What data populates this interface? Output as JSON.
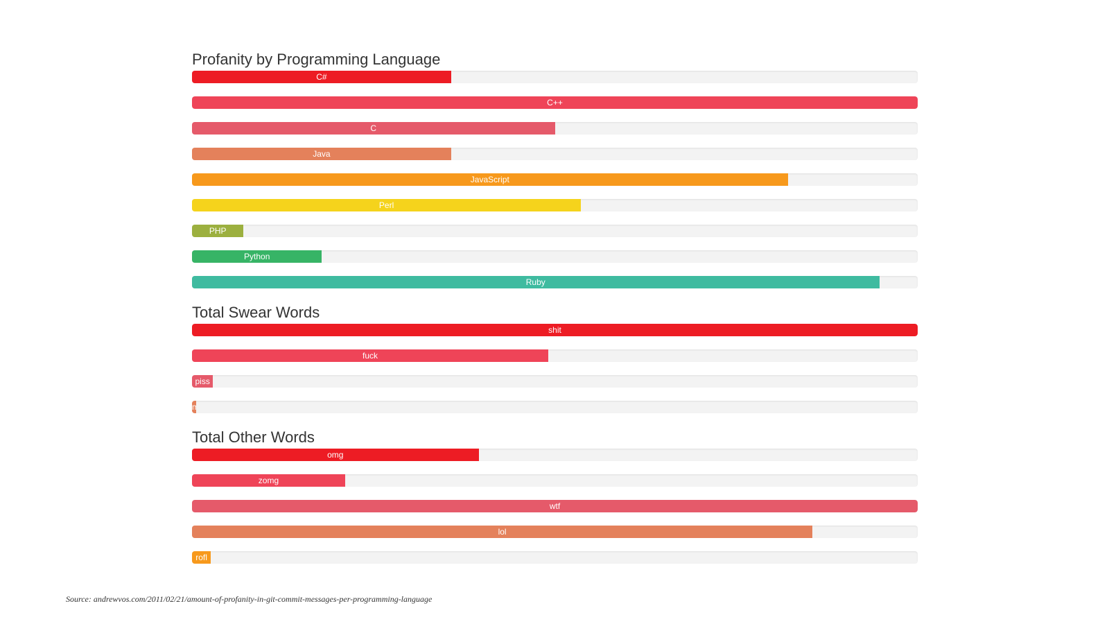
{
  "chart_data": [
    {
      "type": "bar",
      "orientation": "horizontal",
      "title": "Profanity by Programming Language",
      "categories": [
        "C#",
        "C++",
        "C",
        "Java",
        "JavaScript",
        "Perl",
        "PHP",
        "Python",
        "Ruby"
      ],
      "values": [
        35.7,
        100,
        50,
        35.7,
        82.1,
        53.6,
        7.1,
        17.9,
        94.7
      ],
      "colors": [
        "#ed1c24",
        "#ef4458",
        "#e55a6a",
        "#e4815b",
        "#f7991c",
        "#f5d31c",
        "#9cb03f",
        "#37b466",
        "#3fbba0"
      ],
      "xlim": [
        0,
        100
      ]
    },
    {
      "type": "bar",
      "orientation": "horizontal",
      "title": "Total Swear Words",
      "categories": [
        "shit",
        "fuck",
        "piss",
        "motherfucker"
      ],
      "values": [
        100,
        49.1,
        2.9,
        0.6
      ],
      "colors": [
        "#ed1c24",
        "#ef4458",
        "#e55a6a",
        "#e4815b"
      ],
      "xlim": [
        0,
        100
      ]
    },
    {
      "type": "bar",
      "orientation": "horizontal",
      "title": "Total Other Words",
      "categories": [
        "omg",
        "zomg",
        "wtf",
        "lol",
        "rofl"
      ],
      "values": [
        39.5,
        21.1,
        100,
        85.5,
        2.6
      ],
      "colors": [
        "#ed1c24",
        "#ef4458",
        "#e55a6a",
        "#e4815b",
        "#f7991c"
      ],
      "xlim": [
        0,
        100
      ]
    }
  ],
  "source": "Source: andrewvos.com/2011/02/21/amount-of-profanity-in-git-commit-messages-per-programming-language"
}
